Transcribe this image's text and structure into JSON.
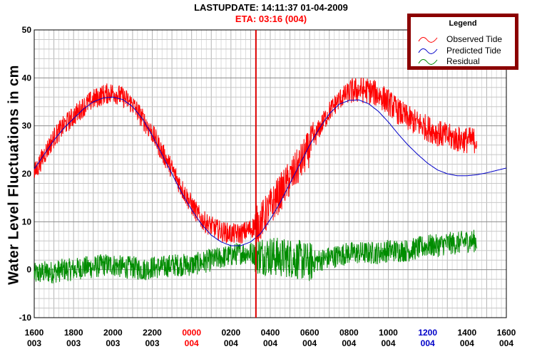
{
  "header": {
    "update_line": "LASTUPDATE: 14:11:37  01-04-2009",
    "eta_line": "ETA: 03:16 (004)",
    "eta_color": "#ff0000"
  },
  "legend": {
    "title": "Legend",
    "items": [
      {
        "label": "Observed Tide",
        "color": "#ff0000"
      },
      {
        "label": "Predicted Tide",
        "color": "#0000c8"
      },
      {
        "label": "Residual",
        "color": "#008c00"
      }
    ]
  },
  "chart_data": {
    "type": "line",
    "ylabel": "Water Level Fluctuations in cm",
    "ylim": [
      -10,
      50
    ],
    "yticks": [
      -10,
      0,
      10,
      20,
      30,
      40,
      50
    ],
    "xlim_hours": [
      0,
      24
    ],
    "xticks": [
      {
        "h": 0,
        "time": "1600",
        "day": "003",
        "color": "#000000"
      },
      {
        "h": 2,
        "time": "1800",
        "day": "003",
        "color": "#000000"
      },
      {
        "h": 4,
        "time": "2000",
        "day": "003",
        "color": "#000000"
      },
      {
        "h": 6,
        "time": "2200",
        "day": "003",
        "color": "#000000"
      },
      {
        "h": 8,
        "time": "0000",
        "day": "004",
        "color": "#ff0000"
      },
      {
        "h": 10,
        "time": "0200",
        "day": "004",
        "color": "#000000"
      },
      {
        "h": 12,
        "time": "0400",
        "day": "004",
        "color": "#000000"
      },
      {
        "h": 14,
        "time": "0600",
        "day": "004",
        "color": "#000000"
      },
      {
        "h": 16,
        "time": "0800",
        "day": "004",
        "color": "#000000"
      },
      {
        "h": 18,
        "time": "1000",
        "day": "004",
        "color": "#000000"
      },
      {
        "h": 20,
        "time": "1200",
        "day": "004",
        "color": "#0000c8"
      },
      {
        "h": 22,
        "time": "1400",
        "day": "004",
        "color": "#000000"
      },
      {
        "h": 24,
        "time": "1600",
        "day": "004",
        "color": "#000000"
      }
    ],
    "eta_marker_hour": 11.27,
    "grid": true,
    "series": [
      {
        "name": "Predicted Tide",
        "color": "#0000c8",
        "x": [
          0,
          0.5,
          1,
          1.5,
          2,
          2.5,
          3,
          3.5,
          4,
          4.5,
          5,
          5.5,
          6,
          6.5,
          7,
          7.5,
          8,
          8.5,
          9,
          9.5,
          10,
          10.5,
          11,
          11.5,
          12,
          12.5,
          13,
          13.5,
          14,
          14.5,
          15,
          15.5,
          16,
          16.5,
          17,
          17.5,
          18,
          18.5,
          19,
          19.5,
          20,
          20.5,
          21,
          21.5,
          22,
          22.5,
          23,
          23.5,
          24
        ],
        "values": [
          21,
          24,
          27,
          29.5,
          31.5,
          33.5,
          35,
          35.8,
          36,
          35.5,
          34,
          31.5,
          28,
          24,
          20,
          16,
          12.5,
          9.5,
          7.2,
          5.8,
          5,
          5,
          5.8,
          7.5,
          10.5,
          14,
          18,
          22,
          26,
          29.5,
          32.5,
          34.5,
          35.3,
          35.4,
          34.6,
          33,
          30.8,
          28.3,
          26,
          24,
          22.2,
          20.8,
          20,
          19.6,
          19.6,
          19.8,
          20.2,
          20.7,
          21.2
        ]
      },
      {
        "name": "Observed Tide",
        "color": "#ff0000",
        "x": [
          0,
          0.5,
          1,
          1.5,
          2,
          2.5,
          3,
          3.5,
          4,
          4.5,
          5,
          5.5,
          6,
          6.5,
          7,
          7.5,
          8,
          8.5,
          9,
          9.5,
          10,
          10.5,
          11,
          11.5,
          12,
          12.5,
          13,
          13.5,
          14,
          14.5,
          15,
          15.5,
          16,
          16.5,
          17,
          17.5,
          18,
          18.5,
          19,
          19.5,
          20,
          20.5,
          21,
          21.5,
          22,
          22.5
        ],
        "values": [
          20,
          24,
          27.5,
          30,
          32,
          34,
          35.5,
          36.5,
          37,
          36,
          34.5,
          31.5,
          28.5,
          24.5,
          21,
          17,
          13.5,
          10.5,
          9,
          8,
          7.5,
          7.5,
          8.5,
          10,
          13,
          16,
          19,
          22,
          25.5,
          29.5,
          33,
          35.5,
          37,
          37.5,
          37.3,
          36.5,
          35,
          33,
          31.5,
          30.5,
          29.5,
          28.5,
          27.8,
          27.2,
          27,
          27
        ]
      },
      {
        "name": "Residual",
        "color": "#008c00",
        "x": [
          0,
          0.5,
          1,
          1.5,
          2,
          2.5,
          3,
          3.5,
          4,
          4.5,
          5,
          5.5,
          6,
          6.5,
          7,
          7.5,
          8,
          8.5,
          9,
          9.5,
          10,
          10.5,
          11,
          11.5,
          12,
          12.5,
          13,
          13.5,
          14,
          14.5,
          15,
          15.5,
          16,
          16.5,
          17,
          17.5,
          18,
          18.5,
          19,
          19.5,
          20,
          20.5,
          21,
          21.5,
          22,
          22.5
        ],
        "values": [
          -1,
          -0.5,
          -0.5,
          0,
          0,
          0.5,
          0.5,
          1,
          1,
          0.5,
          0.5,
          0,
          0.5,
          0.5,
          1,
          1,
          1,
          1.5,
          2,
          2.5,
          3,
          3.5,
          3.5,
          3,
          3,
          2.5,
          2.5,
          2,
          1.5,
          2,
          2.5,
          3,
          3.5,
          3.5,
          3.5,
          3.5,
          4,
          4,
          4,
          4.5,
          5,
          5,
          5.5,
          5.5,
          6,
          6
        ]
      }
    ]
  }
}
